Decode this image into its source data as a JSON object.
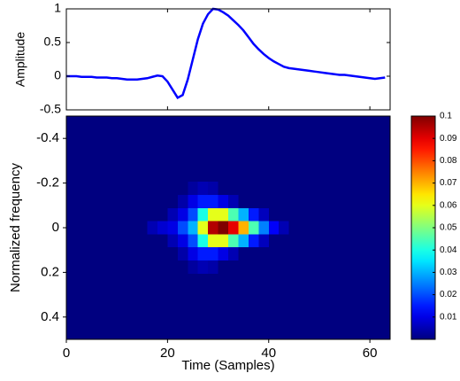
{
  "chart_data": [
    {
      "type": "line",
      "ylabel": "Amplitude",
      "color": "#0000ff",
      "x": [
        0,
        1,
        2,
        3,
        4,
        5,
        6,
        7,
        8,
        9,
        10,
        11,
        12,
        13,
        14,
        15,
        16,
        17,
        18,
        19,
        20,
        21,
        22,
        23,
        24,
        25,
        26,
        27,
        28,
        29,
        30,
        31,
        32,
        33,
        34,
        35,
        36,
        37,
        38,
        39,
        40,
        41,
        42,
        43,
        44,
        45,
        46,
        47,
        48,
        49,
        50,
        51,
        52,
        53,
        54,
        55,
        56,
        57,
        58,
        59,
        60,
        61,
        62,
        63
      ],
      "values": [
        0,
        0,
        0,
        -0.01,
        -0.01,
        -0.01,
        -0.02,
        -0.02,
        -0.02,
        -0.03,
        -0.03,
        -0.04,
        -0.05,
        -0.05,
        -0.05,
        -0.04,
        -0.03,
        -0.01,
        0.01,
        0,
        -0.08,
        -0.2,
        -0.32,
        -0.28,
        -0.05,
        0.25,
        0.55,
        0.78,
        0.92,
        1,
        0.99,
        0.95,
        0.9,
        0.83,
        0.76,
        0.68,
        0.58,
        0.48,
        0.4,
        0.33,
        0.27,
        0.22,
        0.18,
        0.14,
        0.12,
        0.11,
        0.1,
        0.09,
        0.08,
        0.07,
        0.06,
        0.05,
        0.04,
        0.03,
        0.02,
        0.02,
        0.01,
        0,
        -0.01,
        -0.02,
        -0.03,
        -0.04,
        -0.03,
        -0.02
      ],
      "xlim": [
        0,
        64
      ],
      "xticks": [
        0,
        20,
        40,
        60
      ],
      "xtick_labels": false,
      "ylim": [
        -0.5,
        1
      ],
      "yticks": [
        -0.5,
        0,
        0.5,
        1
      ]
    },
    {
      "type": "heatmap",
      "xlabel": "Time (Samples)",
      "ylabel": "Normalized frequency",
      "colormap": "jet",
      "xlim": [
        0,
        64
      ],
      "xticks": [
        0,
        20,
        40,
        60
      ],
      "ylim": [
        -0.5,
        0.5
      ],
      "yticks": [
        -0.4,
        -0.2,
        0,
        0.2,
        0.4
      ],
      "y_reversed": true,
      "clim": [
        0,
        0.1
      ],
      "cticks": [
        0.01,
        0.02,
        0.03,
        0.04,
        0.05,
        0.06,
        0.07,
        0.08,
        0.09,
        0.1
      ],
      "z": [
        [
          0,
          0,
          0,
          0,
          0,
          0,
          0,
          0,
          0,
          0,
          0,
          0,
          0,
          0,
          0,
          0,
          0,
          0,
          0,
          0,
          0,
          0,
          0,
          0,
          0,
          0,
          0,
          0,
          0,
          0,
          0,
          0
        ],
        [
          0,
          0,
          0,
          0,
          0,
          0,
          0,
          0,
          0,
          0,
          0,
          0,
          0,
          0,
          0,
          0,
          0,
          0,
          0,
          0,
          0,
          0,
          0,
          0,
          0,
          0,
          0,
          0,
          0,
          0,
          0,
          0
        ],
        [
          0,
          0,
          0,
          0,
          0,
          0,
          0,
          0,
          0,
          0,
          0,
          0,
          0,
          0,
          0,
          0,
          0,
          0,
          0,
          0,
          0,
          0,
          0,
          0,
          0,
          0,
          0,
          0,
          0,
          0,
          0,
          0
        ],
        [
          0,
          0,
          0,
          0,
          0,
          0,
          0,
          0,
          0,
          0,
          0,
          0,
          0,
          0,
          0,
          0,
          0,
          0,
          0,
          0,
          0,
          0,
          0,
          0,
          0,
          0,
          0,
          0,
          0,
          0,
          0,
          0
        ],
        [
          0,
          0,
          0,
          0,
          0,
          0,
          0,
          0,
          0,
          0,
          0,
          0,
          0,
          0,
          0,
          0,
          0,
          0,
          0,
          0,
          0,
          0,
          0,
          0,
          0,
          0,
          0,
          0,
          0,
          0,
          0,
          0
        ],
        [
          0,
          0,
          0,
          0,
          0,
          0,
          0,
          0,
          0,
          0,
          0,
          0,
          0.003,
          0.005,
          0.004,
          0,
          0,
          0,
          0,
          0,
          0,
          0,
          0,
          0,
          0,
          0,
          0,
          0,
          0,
          0,
          0,
          0
        ],
        [
          0,
          0,
          0,
          0,
          0,
          0,
          0,
          0,
          0,
          0,
          0,
          0.004,
          0.01,
          0.015,
          0.015,
          0.01,
          0.005,
          0,
          0,
          0,
          0,
          0,
          0,
          0,
          0,
          0,
          0,
          0,
          0,
          0,
          0,
          0
        ],
        [
          0,
          0,
          0,
          0,
          0,
          0,
          0,
          0,
          0,
          0,
          0.005,
          0.01,
          0.02,
          0.04,
          0.06,
          0.06,
          0.045,
          0.03,
          0.015,
          0.006,
          0,
          0,
          0,
          0,
          0,
          0,
          0,
          0,
          0,
          0,
          0,
          0
        ],
        [
          0,
          0,
          0,
          0,
          0,
          0,
          0,
          0,
          0.005,
          0.008,
          0.01,
          0.02,
          0.03,
          0.06,
          0.095,
          0.1,
          0.09,
          0.07,
          0.045,
          0.025,
          0.012,
          0.005,
          0,
          0,
          0,
          0,
          0,
          0,
          0,
          0,
          0,
          0
        ],
        [
          0,
          0,
          0,
          0,
          0,
          0,
          0,
          0,
          0,
          0,
          0.005,
          0.01,
          0.02,
          0.04,
          0.06,
          0.06,
          0.045,
          0.03,
          0.015,
          0.006,
          0,
          0,
          0,
          0,
          0,
          0,
          0,
          0,
          0,
          0,
          0,
          0
        ],
        [
          0,
          0,
          0,
          0,
          0,
          0,
          0,
          0,
          0,
          0,
          0,
          0.004,
          0.01,
          0.015,
          0.015,
          0.01,
          0.005,
          0,
          0,
          0,
          0,
          0,
          0,
          0,
          0,
          0,
          0,
          0,
          0,
          0,
          0,
          0
        ],
        [
          0,
          0,
          0,
          0,
          0,
          0,
          0,
          0,
          0,
          0,
          0,
          0,
          0.003,
          0.005,
          0.004,
          0,
          0,
          0,
          0,
          0,
          0,
          0,
          0,
          0,
          0,
          0,
          0,
          0,
          0,
          0,
          0,
          0
        ],
        [
          0,
          0,
          0,
          0,
          0,
          0,
          0,
          0,
          0,
          0,
          0,
          0,
          0,
          0,
          0,
          0,
          0,
          0,
          0,
          0,
          0,
          0,
          0,
          0,
          0,
          0,
          0,
          0,
          0,
          0,
          0,
          0
        ],
        [
          0,
          0,
          0,
          0,
          0,
          0,
          0,
          0,
          0,
          0,
          0,
          0,
          0,
          0,
          0,
          0,
          0,
          0,
          0,
          0,
          0,
          0,
          0,
          0,
          0,
          0,
          0,
          0,
          0,
          0,
          0,
          0
        ],
        [
          0,
          0,
          0,
          0,
          0,
          0,
          0,
          0,
          0,
          0,
          0,
          0,
          0,
          0,
          0,
          0,
          0,
          0,
          0,
          0,
          0,
          0,
          0,
          0,
          0,
          0,
          0,
          0,
          0,
          0,
          0,
          0
        ],
        [
          0,
          0,
          0,
          0,
          0,
          0,
          0,
          0,
          0,
          0,
          0,
          0,
          0,
          0,
          0,
          0,
          0,
          0,
          0,
          0,
          0,
          0,
          0,
          0,
          0,
          0,
          0,
          0,
          0,
          0,
          0,
          0
        ],
        [
          0,
          0,
          0,
          0,
          0,
          0,
          0,
          0,
          0,
          0,
          0,
          0,
          0,
          0,
          0,
          0,
          0,
          0,
          0,
          0,
          0,
          0,
          0,
          0,
          0,
          0,
          0,
          0,
          0,
          0,
          0,
          0
        ]
      ]
    }
  ]
}
